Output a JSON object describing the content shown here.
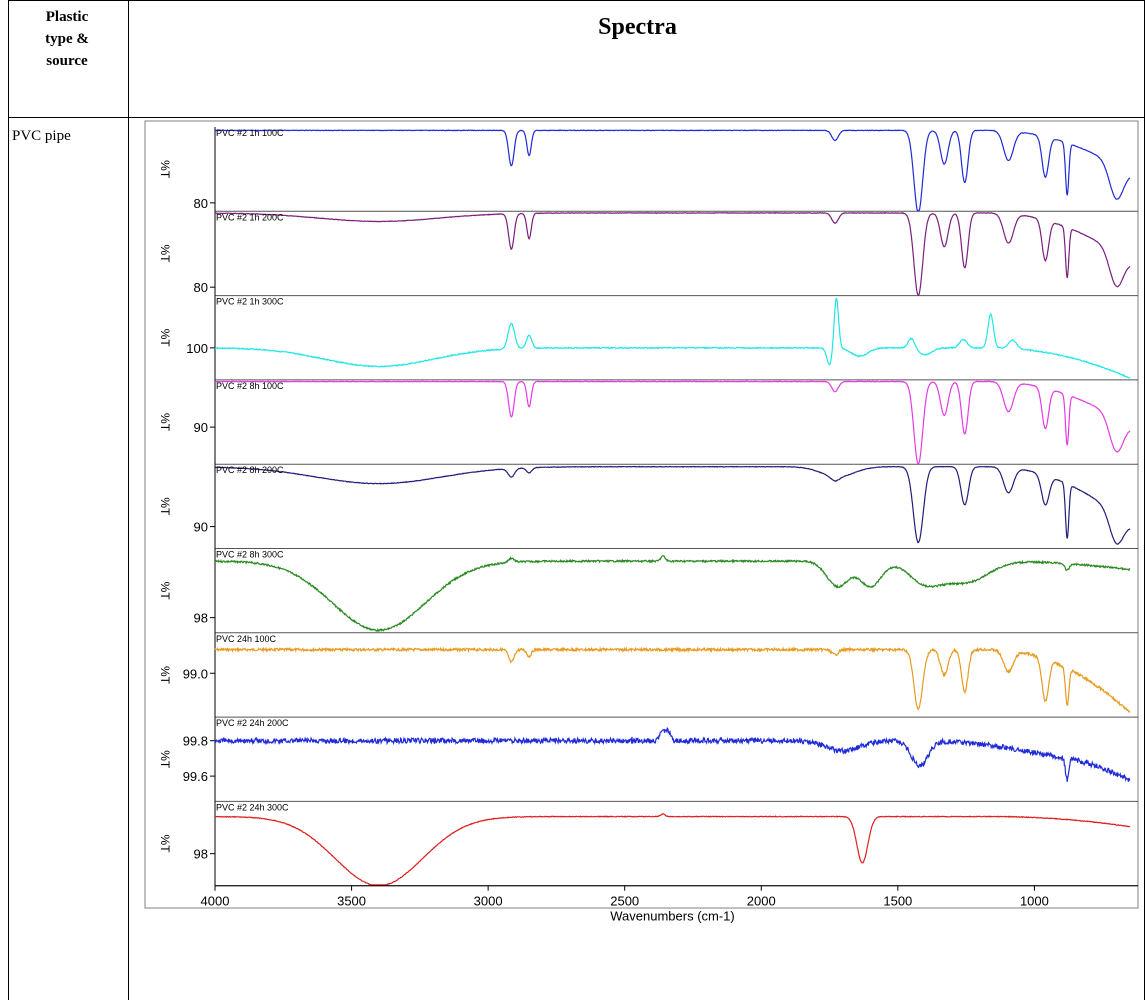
{
  "table": {
    "header_left_lines": [
      "Plastic",
      "type &",
      "source"
    ],
    "header_right": "Spectra",
    "row_label": "PVC pipe"
  },
  "chart_data": {
    "type": "line",
    "xlabel": "Wavenumbers (cm-1)",
    "ylabel": "%T",
    "xlim": [
      4000,
      650
    ],
    "x_ticks": [
      4000,
      3500,
      3000,
      2500,
      2000,
      1500,
      1000
    ],
    "grid": false,
    "panels": [
      {
        "name": "PVC #2 1h 100C",
        "color": "#1f2bd6",
        "y_tick_label": "80",
        "y_tick_pos": 0.9,
        "baseline": 0.04,
        "end_level": 0.55,
        "broad": [],
        "peaks": [
          [
            2915,
            0.42,
            10
          ],
          [
            2850,
            0.3,
            8
          ],
          [
            1730,
            0.12,
            12
          ],
          [
            1425,
            0.98,
            16
          ],
          [
            1330,
            0.4,
            14
          ],
          [
            1255,
            0.62,
            12
          ],
          [
            1095,
            0.35,
            18
          ],
          [
            960,
            0.48,
            12
          ],
          [
            880,
            0.62,
            6
          ],
          [
            700,
            0.4,
            25
          ]
        ],
        "noise": 0.003,
        "seed": 1
      },
      {
        "name": "PVC #2 1h 200C",
        "color": "#7a1f7d",
        "y_tick_label": "80",
        "y_tick_pos": 0.9,
        "baseline": 0.02,
        "end_level": 0.6,
        "broad": [
          [
            3400,
            0.1,
            220
          ]
        ],
        "peaks": [
          [
            2915,
            0.42,
            10
          ],
          [
            2850,
            0.3,
            8
          ],
          [
            1730,
            0.12,
            12
          ],
          [
            1425,
            0.98,
            16
          ],
          [
            1330,
            0.4,
            14
          ],
          [
            1255,
            0.65,
            12
          ],
          [
            1095,
            0.35,
            18
          ],
          [
            960,
            0.48,
            12
          ],
          [
            880,
            0.6,
            6
          ],
          [
            700,
            0.4,
            25
          ]
        ],
        "noise": 0.003,
        "seed": 2
      },
      {
        "name": "PVC #2 1h 300C",
        "color": "#22e6e6",
        "y_tick_label": "100",
        "y_tick_pos": 0.62,
        "baseline": 0.62,
        "end_level": 0.98,
        "broad": [
          [
            3400,
            0.22,
            200
          ],
          [
            1640,
            0.1,
            30
          ],
          [
            1400,
            0.08,
            25
          ]
        ],
        "peaks": [
          [
            2915,
            -0.3,
            12
          ],
          [
            2850,
            -0.15,
            10
          ],
          [
            1725,
            -0.6,
            8
          ],
          [
            1750,
            0.2,
            10
          ],
          [
            1450,
            -0.12,
            12
          ],
          [
            1260,
            -0.1,
            14
          ],
          [
            1160,
            -0.4,
            10
          ],
          [
            1080,
            -0.1,
            14
          ]
        ],
        "noise": 0.006,
        "seed": 3
      },
      {
        "name": "PVC #2 8h 100C",
        "color": "#e63ae6",
        "y_tick_label": "90",
        "y_tick_pos": 0.56,
        "baseline": 0.02,
        "end_level": 0.55,
        "broad": [],
        "peaks": [
          [
            2915,
            0.42,
            10
          ],
          [
            2850,
            0.3,
            8
          ],
          [
            1730,
            0.12,
            12
          ],
          [
            1425,
            0.98,
            16
          ],
          [
            1330,
            0.4,
            14
          ],
          [
            1255,
            0.62,
            12
          ],
          [
            1095,
            0.35,
            18
          ],
          [
            960,
            0.48,
            12
          ],
          [
            880,
            0.6,
            6
          ],
          [
            700,
            0.4,
            25
          ]
        ],
        "noise": 0.003,
        "seed": 4
      },
      {
        "name": "PVC #2 8h 200C",
        "color": "#1f1f7a",
        "y_tick_label": "90",
        "y_tick_pos": 0.74,
        "baseline": 0.03,
        "end_level": 0.72,
        "broad": [
          [
            3400,
            0.2,
            230
          ],
          [
            1720,
            0.12,
            60
          ]
        ],
        "peaks": [
          [
            2915,
            0.1,
            12
          ],
          [
            2850,
            0.06,
            10
          ],
          [
            1730,
            0.05,
            15
          ],
          [
            1425,
            0.9,
            18
          ],
          [
            1255,
            0.45,
            14
          ],
          [
            1095,
            0.3,
            18
          ],
          [
            960,
            0.35,
            14
          ],
          [
            880,
            0.65,
            6
          ],
          [
            700,
            0.35,
            25
          ]
        ],
        "noise": 0.003,
        "seed": 5
      },
      {
        "name": "PVC #2 8h 300C",
        "color": "#2a8a22",
        "y_tick_label": "98",
        "y_tick_pos": 0.82,
        "baseline": 0.15,
        "end_level": 0.25,
        "broad": [
          [
            3400,
            0.82,
            170
          ],
          [
            1720,
            0.3,
            40
          ],
          [
            1600,
            0.3,
            40
          ],
          [
            1400,
            0.25,
            60
          ],
          [
            1250,
            0.25,
            80
          ]
        ],
        "peaks": [
          [
            2915,
            -0.05,
            10
          ],
          [
            2360,
            -0.06,
            8
          ],
          [
            880,
            0.08,
            8
          ]
        ],
        "noise": 0.01,
        "seed": 6
      },
      {
        "name": "PVC 24h 100C",
        "color": "#e89a1f",
        "y_tick_label": "99.0",
        "y_tick_pos": 0.48,
        "baseline": 0.2,
        "end_level": 0.95,
        "broad": [],
        "peaks": [
          [
            2915,
            0.15,
            10
          ],
          [
            2850,
            0.08,
            8
          ],
          [
            1730,
            0.06,
            12
          ],
          [
            1425,
            0.7,
            16
          ],
          [
            1330,
            0.3,
            14
          ],
          [
            1255,
            0.5,
            12
          ],
          [
            1095,
            0.25,
            18
          ],
          [
            960,
            0.5,
            12
          ],
          [
            880,
            0.45,
            6
          ]
        ],
        "noise": 0.015,
        "seed": 7
      },
      {
        "name": "PVC #2 24h 200C",
        "color": "#1f2bd6",
        "y_tick_label_top": "99.8",
        "y_tick_pos_top": 0.28,
        "y_tick_label": "99.6",
        "y_tick_pos": 0.7,
        "baseline": 0.28,
        "end_level": 0.75,
        "broad": [
          [
            1700,
            0.12,
            60
          ],
          [
            1420,
            0.3,
            30
          ],
          [
            1000,
            0.1,
            150
          ]
        ],
        "peaks": [
          [
            2360,
            -0.12,
            10
          ],
          [
            2340,
            -0.1,
            8
          ],
          [
            880,
            0.25,
            6
          ]
        ],
        "noise": 0.03,
        "seed": 8
      },
      {
        "name": "PVC #2 24h 300C",
        "color": "#e01f1f",
        "y_tick_label": "98",
        "y_tick_pos": 0.62,
        "baseline": 0.18,
        "end_level": 0.3,
        "broad": [
          [
            3400,
            0.82,
            160
          ]
        ],
        "peaks": [
          [
            1630,
            0.55,
            20
          ],
          [
            2360,
            -0.03,
            8
          ]
        ],
        "noise": 0.004,
        "seed": 9
      }
    ]
  }
}
